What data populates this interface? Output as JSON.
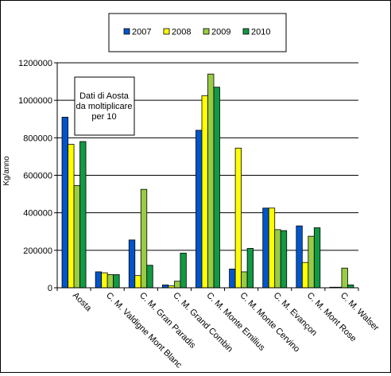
{
  "chart_data": {
    "type": "bar",
    "title": "",
    "xlabel": "",
    "ylabel": "Kg/anno",
    "ylim": [
      0,
      1200000
    ],
    "yticks": [
      "0",
      "200000",
      "400000",
      "600000",
      "800000",
      "1000000",
      "1200000"
    ],
    "categories": [
      "Aosta",
      "C. M. Valdigne Mont Blanc",
      "C. M. Gran Paradis",
      "C. M. Grand Combin",
      "C. M. Monte Emilius",
      "C. M. Monte Cervino",
      "C. M. Evançon",
      "C. M. Mont Rose",
      "C. M. Walser"
    ],
    "series": [
      {
        "name": "2007",
        "color": "#0055cc",
        "values": [
          910000,
          85000,
          255000,
          15000,
          840000,
          100000,
          425000,
          330000,
          3000
        ]
      },
      {
        "name": "2008",
        "color": "#ffff00",
        "values": [
          765000,
          80000,
          65000,
          10000,
          1025000,
          745000,
          425000,
          135000,
          3000
        ]
      },
      {
        "name": "2009",
        "color": "#99cc44",
        "values": [
          545000,
          70000,
          525000,
          35000,
          1140000,
          85000,
          310000,
          275000,
          105000
        ]
      },
      {
        "name": "2010",
        "color": "#119944",
        "values": [
          780000,
          70000,
          120000,
          185000,
          1070000,
          210000,
          305000,
          320000,
          15000
        ]
      }
    ],
    "annotation": [
      "Dati di Aosta",
      "da moltiplicare",
      "per 10"
    ],
    "grid": true,
    "legend_position": "top"
  }
}
